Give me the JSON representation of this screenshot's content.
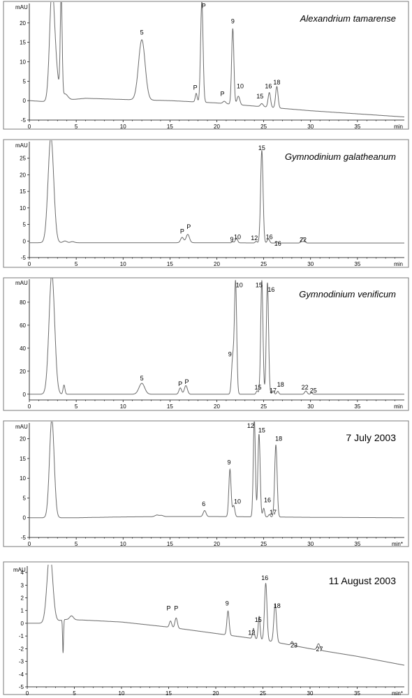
{
  "chart_data": [
    {
      "type": "line",
      "title": "Alexandrium tamarense",
      "title_italic": true,
      "y_unit": "mAU",
      "x_unit": "min",
      "xlim": [
        0,
        40
      ],
      "ylim": [
        -5,
        25
      ],
      "x_ticks": [
        0,
        5,
        10,
        15,
        20,
        25,
        30,
        35
      ],
      "y_ticks": [
        -5,
        0,
        5,
        10,
        15,
        20
      ],
      "baseline": [
        [
          0,
          0
        ],
        [
          2,
          -0.3
        ],
        [
          6,
          0.6
        ],
        [
          10,
          0.3
        ],
        [
          15,
          0
        ],
        [
          20,
          -0.6
        ],
        [
          25,
          -1.6
        ],
        [
          30,
          -2.6
        ],
        [
          35,
          -3.4
        ],
        [
          40,
          -4.2
        ]
      ],
      "peaks": [
        {
          "rt": 2.4,
          "height": 26,
          "width": 0.25
        },
        {
          "rt": 2.8,
          "height": 8,
          "width": 0.3
        },
        {
          "rt": 3.4,
          "height": 26,
          "width": 0.1
        },
        {
          "rt": 3.8,
          "height": 1.6,
          "width": 0.3
        },
        {
          "rt": 12.0,
          "height": 15.5,
          "width": 0.35
        },
        {
          "rt": 17.8,
          "height": 2.2,
          "width": 0.1
        },
        {
          "rt": 18.4,
          "height": 26,
          "width": 0.13
        },
        {
          "rt": 20.8,
          "height": 0.6,
          "width": 0.15
        },
        {
          "rt": 21.7,
          "height": 19.5,
          "width": 0.12
        },
        {
          "rt": 22.3,
          "height": 2.2,
          "width": 0.15
        },
        {
          "rt": 24.8,
          "height": 0.8,
          "width": 0.15
        },
        {
          "rt": 25.6,
          "height": 3.8,
          "width": 0.13
        },
        {
          "rt": 26.4,
          "height": 5.5,
          "width": 0.13
        }
      ],
      "labels": [
        {
          "text": "5",
          "rt": 12.0,
          "y": 17
        },
        {
          "text": "P",
          "rt": 17.7,
          "y": 2.8
        },
        {
          "text": "P",
          "rt": 18.6,
          "y": 23.8
        },
        {
          "text": "P",
          "rt": 20.6,
          "y": 1.2
        },
        {
          "text": "9",
          "rt": 21.7,
          "y": 19.9
        },
        {
          "text": "10",
          "rt": 22.5,
          "y": 3.2
        },
        {
          "text": "15",
          "rt": 24.6,
          "y": 0.6
        },
        {
          "text": "16",
          "rt": 25.5,
          "y": 3.2
        },
        {
          "text": "18",
          "rt": 26.4,
          "y": 4.2
        }
      ]
    },
    {
      "type": "line",
      "title": "Gymnodinium galatheanum",
      "title_italic": true,
      "y_unit": "mAU",
      "x_unit": "min",
      "xlim": [
        0,
        40
      ],
      "ylim": [
        -5,
        30
      ],
      "x_ticks": [
        0,
        5,
        10,
        15,
        20,
        25,
        30,
        35
      ],
      "y_ticks": [
        -5,
        0,
        5,
        10,
        15,
        20,
        25
      ],
      "baseline": [
        [
          0,
          -0.5
        ],
        [
          2,
          -0.5
        ],
        [
          5,
          -0.5
        ],
        [
          15,
          -0.5
        ],
        [
          20,
          -0.5
        ],
        [
          25,
          -0.6
        ],
        [
          30,
          -0.6
        ],
        [
          40,
          -0.6
        ]
      ],
      "peaks": [
        {
          "rt": 2.3,
          "height": 32,
          "width": 0.3
        },
        {
          "rt": 3.8,
          "height": 0.5,
          "width": 0.2
        },
        {
          "rt": 4.6,
          "height": 0.3,
          "width": 0.2
        },
        {
          "rt": 16.3,
          "height": 1.6,
          "width": 0.16
        },
        {
          "rt": 16.9,
          "height": 2.5,
          "width": 0.18
        },
        {
          "rt": 21.7,
          "height": 0.3,
          "width": 0.1
        },
        {
          "rt": 22.1,
          "height": 1.4,
          "width": 0.12
        },
        {
          "rt": 24.2,
          "height": 0.5,
          "width": 0.1
        },
        {
          "rt": 24.8,
          "height": 28,
          "width": 0.13
        },
        {
          "rt": 25.5,
          "height": 1.3,
          "width": 0.12
        },
        {
          "rt": 26.4,
          "height": 0.4,
          "width": 0.1
        },
        {
          "rt": 29.2,
          "height": 1.6,
          "width": 0.15
        }
      ],
      "labels": [
        {
          "text": "P",
          "rt": 16.3,
          "y": 2.3
        },
        {
          "text": "P",
          "rt": 17.0,
          "y": 3.6
        },
        {
          "text": "9",
          "rt": 21.6,
          "y": -0.2
        },
        {
          "text": "10",
          "rt": 22.2,
          "y": 0.6
        },
        {
          "text": "12",
          "rt": 24.0,
          "y": 0.3
        },
        {
          "text": "15",
          "rt": 24.8,
          "y": 27.5
        },
        {
          "text": "16",
          "rt": 25.6,
          "y": 0.6
        },
        {
          "text": "16",
          "rt": 26.5,
          "y": -1.4
        },
        {
          "text": "22",
          "rt": 29.2,
          "y": -0.3
        }
      ]
    },
    {
      "type": "line",
      "title": "Gymnodinium venificum",
      "title_italic": true,
      "y_unit": "mAU",
      "x_unit": "min",
      "xlim": [
        0,
        40
      ],
      "ylim": [
        -5,
        100
      ],
      "x_ticks": [
        0,
        5,
        10,
        15,
        20,
        25,
        30,
        35
      ],
      "y_ticks": [
        0,
        20,
        40,
        60,
        80
      ],
      "baseline": [
        [
          0,
          0
        ],
        [
          2,
          0
        ],
        [
          5,
          0
        ],
        [
          15,
          0
        ],
        [
          20,
          0
        ],
        [
          25,
          0
        ],
        [
          30,
          0
        ],
        [
          40,
          0
        ]
      ],
      "peaks": [
        {
          "rt": 2.4,
          "height": 105,
          "width": 0.3
        },
        {
          "rt": 3.7,
          "height": 8,
          "width": 0.1
        },
        {
          "rt": 12.0,
          "height": 9.5,
          "width": 0.3
        },
        {
          "rt": 16.1,
          "height": 5.5,
          "width": 0.14
        },
        {
          "rt": 16.7,
          "height": 7.5,
          "width": 0.16
        },
        {
          "rt": 21.7,
          "height": 31,
          "width": 0.13
        },
        {
          "rt": 22.0,
          "height": 97,
          "width": 0.12
        },
        {
          "rt": 24.3,
          "height": 3,
          "width": 0.1
        },
        {
          "rt": 24.8,
          "height": 99,
          "width": 0.12
        },
        {
          "rt": 25.4,
          "height": 97,
          "width": 0.12
        },
        {
          "rt": 26.0,
          "height": 3,
          "width": 0.1
        },
        {
          "rt": 26.5,
          "height": 2.5,
          "width": 0.1
        },
        {
          "rt": 29.5,
          "height": 2.8,
          "width": 0.13
        },
        {
          "rt": 30.1,
          "height": 1.2,
          "width": 0.1
        }
      ],
      "labels": [
        {
          "text": "5",
          "rt": 12.0,
          "y": 12
        },
        {
          "text": "P",
          "rt": 16.1,
          "y": 7
        },
        {
          "text": "P",
          "rt": 16.8,
          "y": 9
        },
        {
          "text": "9",
          "rt": 21.4,
          "y": 33
        },
        {
          "text": "10",
          "rt": 22.4,
          "y": 93
        },
        {
          "text": "15",
          "rt": 24.5,
          "y": 93
        },
        {
          "text": "16",
          "rt": 25.8,
          "y": 89
        },
        {
          "text": "15",
          "rt": 24.4,
          "y": 4
        },
        {
          "text": "17",
          "rt": 26.0,
          "y": 1.5
        },
        {
          "text": "18",
          "rt": 26.8,
          "y": 6.5
        },
        {
          "text": "22",
          "rt": 29.4,
          "y": 4
        },
        {
          "text": "25",
          "rt": 30.3,
          "y": 1.5
        }
      ]
    },
    {
      "type": "line",
      "title": "7 July 2003",
      "title_italic": false,
      "y_unit": "mAU",
      "x_unit": "min*",
      "xlim": [
        0,
        40
      ],
      "ylim": [
        -5,
        24
      ],
      "x_ticks": [
        0,
        5,
        10,
        15,
        20,
        25,
        30,
        35
      ],
      "y_ticks": [
        -5,
        0,
        5,
        10,
        15,
        20
      ],
      "baseline": [
        [
          0,
          0
        ],
        [
          2,
          0
        ],
        [
          5,
          0
        ],
        [
          10,
          0.2
        ],
        [
          15,
          0.3
        ],
        [
          20,
          0.3
        ],
        [
          25,
          0.2
        ],
        [
          30,
          0.1
        ],
        [
          40,
          0
        ]
      ],
      "peaks": [
        {
          "rt": 2.4,
          "height": 25,
          "width": 0.25
        },
        {
          "rt": 13.6,
          "height": 0.4,
          "width": 0.2
        },
        {
          "rt": 14.1,
          "height": 0.3,
          "width": 0.2
        },
        {
          "rt": 18.7,
          "height": 1.5,
          "width": 0.15
        },
        {
          "rt": 21.4,
          "height": 12,
          "width": 0.12
        },
        {
          "rt": 21.8,
          "height": 2.8,
          "width": 0.12
        },
        {
          "rt": 24.0,
          "height": 25,
          "width": 0.11
        },
        {
          "rt": 24.5,
          "height": 21,
          "width": 0.12
        },
        {
          "rt": 25.0,
          "height": 2.2,
          "width": 0.1
        },
        {
          "rt": 25.6,
          "height": 0.6,
          "width": 0.1
        },
        {
          "rt": 26.3,
          "height": 18.3,
          "width": 0.13
        }
      ],
      "labels": [
        {
          "text": "6",
          "rt": 18.6,
          "y": 3
        },
        {
          "text": "9",
          "rt": 21.3,
          "y": 13.5
        },
        {
          "text": "10",
          "rt": 22.2,
          "y": 3.6
        },
        {
          "text": "12",
          "rt": 23.6,
          "y": 22.8
        },
        {
          "text": "15",
          "rt": 24.8,
          "y": 21.6
        },
        {
          "text": "18",
          "rt": 26.6,
          "y": 19.5
        },
        {
          "text": "16",
          "rt": 25.4,
          "y": 3.9
        },
        {
          "text": "17",
          "rt": 26.0,
          "y": 0.8
        }
      ]
    },
    {
      "type": "line",
      "title": "11 August 2003",
      "title_italic": false,
      "y_unit": "mAU",
      "x_unit": "min*",
      "xlim": [
        0,
        40
      ],
      "ylim": [
        -5,
        4.5
      ],
      "x_ticks": [
        0,
        5,
        10,
        15,
        20,
        25,
        30,
        35
      ],
      "y_ticks": [
        -5,
        -4,
        -3,
        -2,
        -1,
        0,
        1,
        2,
        3,
        4
      ],
      "baseline": [
        [
          0,
          0
        ],
        [
          2,
          0
        ],
        [
          4,
          0.3
        ],
        [
          6,
          0.25
        ],
        [
          10,
          0.1
        ],
        [
          15,
          -0.3
        ],
        [
          20,
          -0.8
        ],
        [
          25,
          -1.3
        ],
        [
          30,
          -2.0
        ],
        [
          35,
          -2.6
        ],
        [
          40,
          -3.3
        ]
      ],
      "peaks": [
        {
          "rt": 2.4,
          "height": 5.5,
          "width": 0.3
        },
        {
          "rt": 3.8,
          "height": -2.6,
          "width": 0.05
        },
        {
          "rt": 4.7,
          "height": 0.3,
          "width": 0.2
        },
        {
          "rt": 15.2,
          "height": 0.5,
          "width": 0.12
        },
        {
          "rt": 15.8,
          "height": 0.8,
          "width": 0.13
        },
        {
          "rt": 21.3,
          "height": 1.9,
          "width": 0.12
        },
        {
          "rt": 24.0,
          "height": 0.8,
          "width": 0.1
        },
        {
          "rt": 24.6,
          "height": 1.8,
          "width": 0.1
        },
        {
          "rt": 25.3,
          "height": 4.5,
          "width": 0.13
        },
        {
          "rt": 26.3,
          "height": 3.0,
          "width": 0.14
        },
        {
          "rt": 28.1,
          "height": 0.3,
          "width": 0.12
        },
        {
          "rt": 30.9,
          "height": 0.5,
          "width": 0.15
        }
      ],
      "labels": [
        {
          "text": "P",
          "rt": 15.0,
          "y": 1.0
        },
        {
          "text": "P",
          "rt": 15.8,
          "y": 1.0
        },
        {
          "text": "9",
          "rt": 21.2,
          "y": 1.4
        },
        {
          "text": "12",
          "rt": 23.8,
          "y": -0.9
        },
        {
          "text": "15",
          "rt": 24.5,
          "y": 0.1
        },
        {
          "text": "16",
          "rt": 25.2,
          "y": 3.4
        },
        {
          "text": "18",
          "rt": 26.5,
          "y": 1.2
        },
        {
          "text": "23",
          "rt": 28.3,
          "y": -1.9
        },
        {
          "text": "27",
          "rt": 31.0,
          "y": -2.2
        }
      ]
    }
  ]
}
